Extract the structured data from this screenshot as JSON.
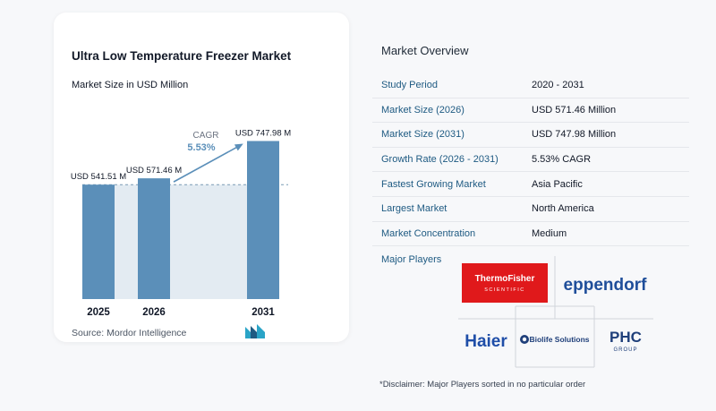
{
  "chart_data": {
    "type": "bar",
    "title": "Ultra Low Temperature Freezer Market",
    "subtitle": "Market Size in USD Million",
    "categories": [
      "2025",
      "2026",
      "2031"
    ],
    "values": [
      541.51,
      571.46,
      747.98
    ],
    "data_labels": [
      "USD 541.51 M",
      "USD 571.46 M",
      "USD 747.98 M"
    ],
    "cagr_label": "CAGR",
    "cagr_value": "5.53%",
    "ylim": [
      0,
      800
    ],
    "grid": false,
    "bar_color": "#5b8fb9",
    "shade_color": "#e3ebf2"
  },
  "source": "Source:  Mordor Intelligence",
  "overview": {
    "title": "Market Overview",
    "rows": [
      {
        "key": "Study Period",
        "value": "2020 - 2031"
      },
      {
        "key": "Market Size (2026)",
        "value": "USD 571.46 Million"
      },
      {
        "key": "Market Size (2031)",
        "value": "USD 747.98 Million"
      },
      {
        "key": "Growth Rate (2026 - 2031)",
        "value": "5.53% CAGR"
      },
      {
        "key": "Fastest Growing Market",
        "value": "Asia Pacific"
      },
      {
        "key": "Largest Market",
        "value": "North America"
      },
      {
        "key": "Market Concentration",
        "value": "Medium"
      }
    ],
    "players_label": "Major Players",
    "players": {
      "thermo_1": "ThermoFisher",
      "thermo_2": "SCIENTIFIC",
      "eppendorf": "eppendorf",
      "haier": "Haier",
      "biolife": "Biolife Solutions",
      "phc_1": "PHC",
      "phc_2": "GROUP"
    },
    "disclaimer": "*Disclaimer: Major Players sorted in no particular order"
  }
}
